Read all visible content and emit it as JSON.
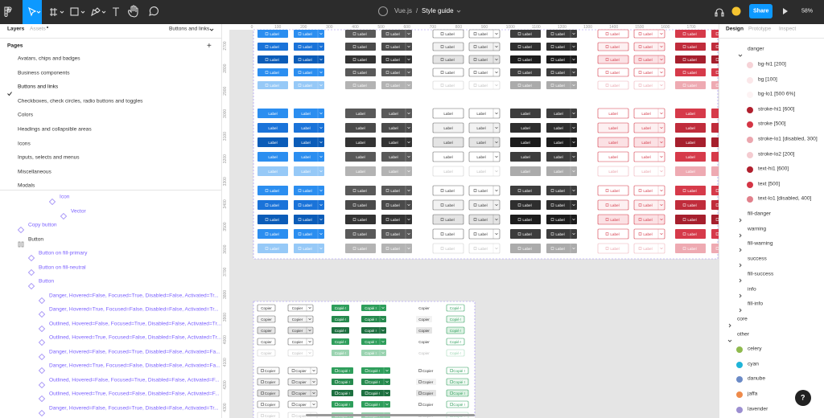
{
  "toolbar": {
    "project": "Vue.js",
    "separator": "/",
    "file": "Style guide",
    "share": "Share",
    "zoom": "58%"
  },
  "left_panel": {
    "tabs": [
      "Layers",
      "Assets"
    ],
    "page_selector": "Buttons and links",
    "pages_title": "Pages",
    "add": "+",
    "pages": [
      "Avatars, chips and badges",
      "Business components",
      "Buttons and links",
      "Checkboxes, check circles, radio buttons and toggles",
      "Colors",
      "Headings and collapsible areas",
      "Icons",
      "Inputs, selects and menus",
      "Miscellaneous",
      "Modals"
    ],
    "layers": [
      "Icon",
      "Vector",
      "Copy button",
      "Button",
      "Button on fill-primary",
      "Button on fill-neutral",
      "Button",
      "Danger, Hovered=False, Focused=True, Disabled=False, Activated=Tr...",
      "Danger, Hovered=True, Focused=False, Disabled=False, Activated=Tr...",
      "Outlined, Hovered=False, Focused=True, Disabled=False, Activated=Tr...",
      "Outlined, Hovered=True, Focused=False, Disabled=False, Activated=Tr...",
      "Danger, Hovered=False, Focused=True, Disabled=False, Activated=Fa...",
      "Danger, Hovered=True, Focused=False, Disabled=False, Activated=Fa...",
      "Outlined, Hovered=False, Focused=True, Disabled=False, Activated=F...",
      "Outlined, Hovered=True, Focused=False, Disabled=False, Activated=F...",
      "Danger, Hovered=False, Focused=True, Disabled=False, Activated=Tr..."
    ]
  },
  "canvas": {
    "ruler_x": [
      0,
      100,
      200,
      300,
      400,
      500,
      600,
      700,
      800,
      900,
      1000,
      1100,
      1200,
      1300,
      1400,
      1500,
      1600,
      1700
    ],
    "ruler_y": [
      2700,
      2800,
      2900,
      3000,
      3100,
      3200,
      3300,
      3400,
      3500,
      3600,
      3700,
      3800,
      3900,
      4000,
      4100,
      4200,
      4300
    ],
    "button_label": "Label",
    "copy_label": "Copier",
    "copied_label": "Copié !"
  },
  "right_panel": {
    "tabs": [
      "Design",
      "Prototype",
      "Inspect"
    ],
    "danger": {
      "name": "danger",
      "items": [
        {
          "name": "bg-hi1 [200]",
          "color": "#f6d3d7"
        },
        {
          "name": "bg [100]",
          "color": "#fbe7e9"
        },
        {
          "name": "bg-lo1 [500 6%]",
          "color": "#fdf3f4"
        },
        {
          "name": "stroke-hi1 [600]",
          "color": "#b0202e"
        },
        {
          "name": "stroke [500]",
          "color": "#d43545"
        },
        {
          "name": "stroke-lo1 [disabled, 300]",
          "color": "#eba6ae"
        },
        {
          "name": "stroke-lo2 [200]",
          "color": "#f4cbd0"
        },
        {
          "name": "text-hi1 [600]",
          "color": "#b0202e"
        },
        {
          "name": "text [500]",
          "color": "#d43545"
        },
        {
          "name": "text-lo1 [disabled, 400]",
          "color": "#e1808b"
        }
      ]
    },
    "collapsed_groups": [
      "fill-danger",
      "warning",
      "fill-warning",
      "success",
      "fill-success",
      "info",
      "fill-info"
    ],
    "core": "core",
    "other": {
      "name": "other",
      "items": [
        {
          "name": "celery",
          "color": "#8fba4e"
        },
        {
          "name": "cyan",
          "color": "#1fb4d8"
        },
        {
          "name": "danube",
          "color": "#6b8ac6"
        },
        {
          "name": "jaffa",
          "color": "#ee8a4a"
        },
        {
          "name": "lavender",
          "color": "#9c8fd1"
        }
      ]
    }
  },
  "help": "?"
}
